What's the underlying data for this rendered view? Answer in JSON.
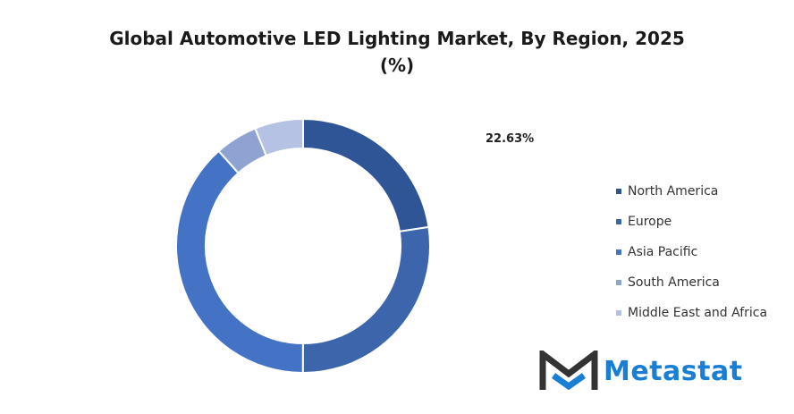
{
  "chart_data": {
    "type": "pie",
    "subtype": "donut",
    "title": "Global Automotive LED Lighting  Market, By Region, 2025",
    "subtitle": "(%)",
    "categories": [
      "North America",
      "Europe",
      "Asia Pacific",
      "South America",
      "Middle East and Africa"
    ],
    "values": [
      22.63,
      27.4,
      38.4,
      5.4,
      6.17
    ],
    "colors": [
      "#2F5597",
      "#3C65AB",
      "#4472C4",
      "#8FA3D3",
      "#B5C2E3"
    ],
    "data_labels": [
      {
        "category": "North America",
        "text": "22.63%"
      }
    ],
    "legend_position": "right"
  },
  "logo": {
    "text": "Metastat"
  }
}
